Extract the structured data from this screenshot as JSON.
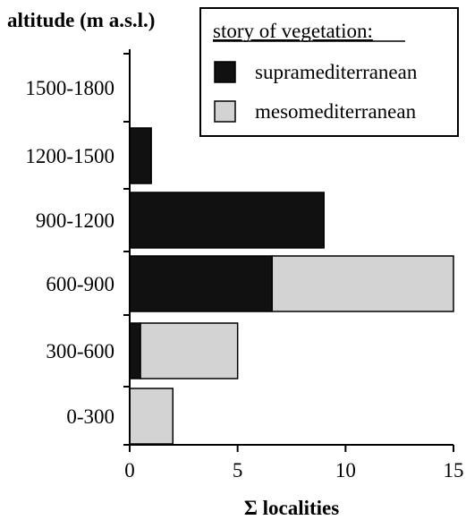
{
  "chart_data": {
    "type": "bar",
    "orientation": "horizontal",
    "stacked": true,
    "ylabel": "altitude (m a.s.l.)",
    "xlabel": "Σ localities",
    "categories": [
      "1500-1800",
      "1200-1500",
      "900-1200",
      "600-900",
      "300-600",
      "0-300"
    ],
    "series": [
      {
        "name": "supramediterranean",
        "color": "#111111",
        "values": [
          0,
          1,
          9,
          6.6,
          0.5,
          0
        ]
      },
      {
        "name": "mesomediterranean",
        "color": "#d3d3d3",
        "values": [
          0,
          0,
          0,
          8.4,
          4.5,
          2
        ]
      }
    ],
    "xlim": [
      0,
      15
    ],
    "xticks": [
      "0",
      "5",
      "10",
      "15"
    ],
    "grid": false,
    "legend": {
      "title": "story of vegetation:",
      "position": "top-right"
    }
  }
}
